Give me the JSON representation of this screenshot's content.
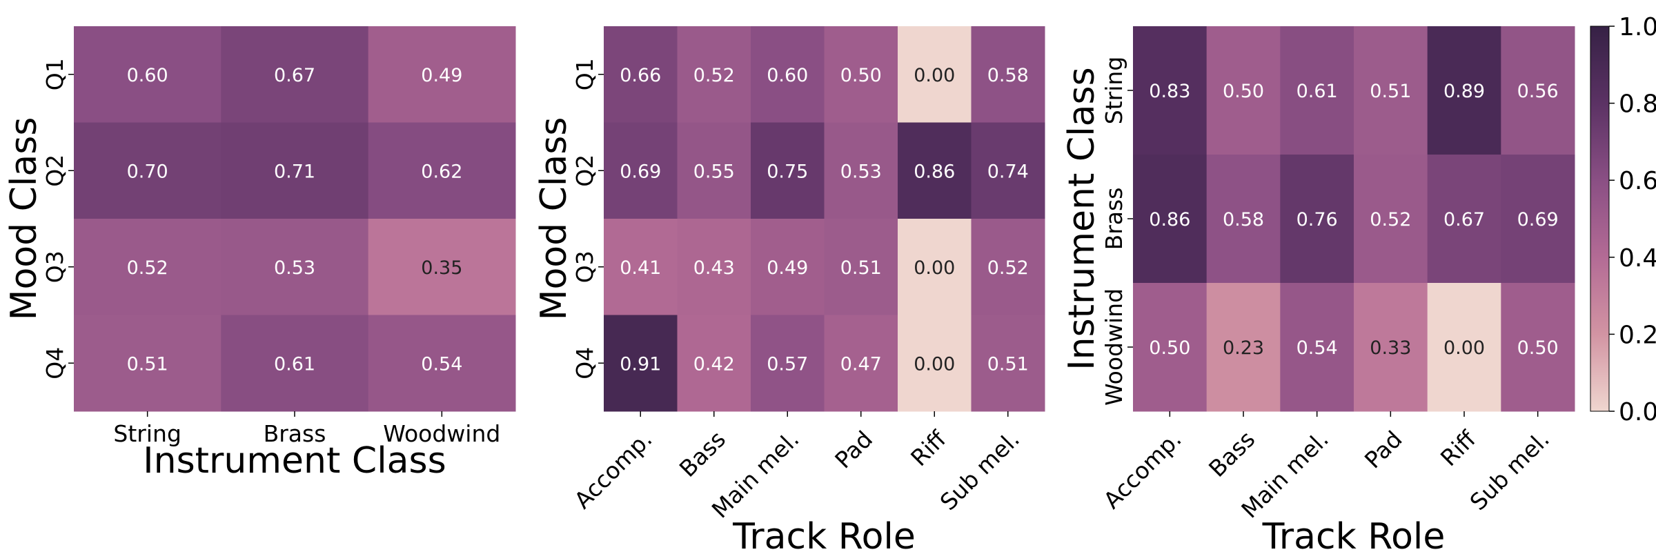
{
  "colormap": {
    "stops": [
      "#efd6cf",
      "#d294a3",
      "#b36b95",
      "#8a4f84",
      "#5b3264",
      "#362145"
    ],
    "range": [
      0.0,
      1.0
    ],
    "light_text_color": "#ffffff",
    "dark_text_color": "#222222"
  },
  "chart_data": [
    {
      "type": "heatmap",
      "xlabel": "Instrument Class",
      "ylabel": "Mood Class",
      "x_categories": [
        "String",
        "Brass",
        "Woodwind"
      ],
      "y_categories": [
        "Q1",
        "Q2",
        "Q3",
        "Q4"
      ],
      "values": [
        [
          0.6,
          0.67,
          0.49
        ],
        [
          0.7,
          0.71,
          0.62
        ],
        [
          0.52,
          0.53,
          0.35
        ],
        [
          0.51,
          0.61,
          0.54
        ]
      ],
      "x_tick_rotation": 0
    },
    {
      "type": "heatmap",
      "xlabel": "Track Role",
      "ylabel": "Mood Class",
      "x_categories": [
        "Accomp.",
        "Bass",
        "Main mel.",
        "Pad",
        "Riff",
        "Sub mel."
      ],
      "y_categories": [
        "Q1",
        "Q2",
        "Q3",
        "Q4"
      ],
      "values": [
        [
          0.66,
          0.52,
          0.6,
          0.5,
          0.0,
          0.58
        ],
        [
          0.69,
          0.55,
          0.75,
          0.53,
          0.86,
          0.74
        ],
        [
          0.41,
          0.43,
          0.49,
          0.51,
          0.0,
          0.52
        ],
        [
          0.91,
          0.42,
          0.57,
          0.47,
          0.0,
          0.51
        ]
      ],
      "x_tick_rotation": -45
    },
    {
      "type": "heatmap",
      "xlabel": "Track Role",
      "ylabel": "Instrument Class",
      "x_categories": [
        "Accomp.",
        "Bass",
        "Main mel.",
        "Pad",
        "Riff",
        "Sub mel."
      ],
      "y_categories": [
        "String",
        "Brass",
        "Woodwind"
      ],
      "values": [
        [
          0.83,
          0.5,
          0.61,
          0.51,
          0.89,
          0.56
        ],
        [
          0.86,
          0.58,
          0.76,
          0.52,
          0.67,
          0.69
        ],
        [
          0.5,
          0.23,
          0.54,
          0.33,
          0.0,
          0.5
        ]
      ],
      "x_tick_rotation": -45
    }
  ],
  "colorbar": {
    "ticks": [
      "0.0",
      "0.2",
      "0.4",
      "0.6",
      "0.8",
      "1.0"
    ],
    "tick_values": [
      0.0,
      0.2,
      0.4,
      0.6,
      0.8,
      1.0
    ]
  }
}
